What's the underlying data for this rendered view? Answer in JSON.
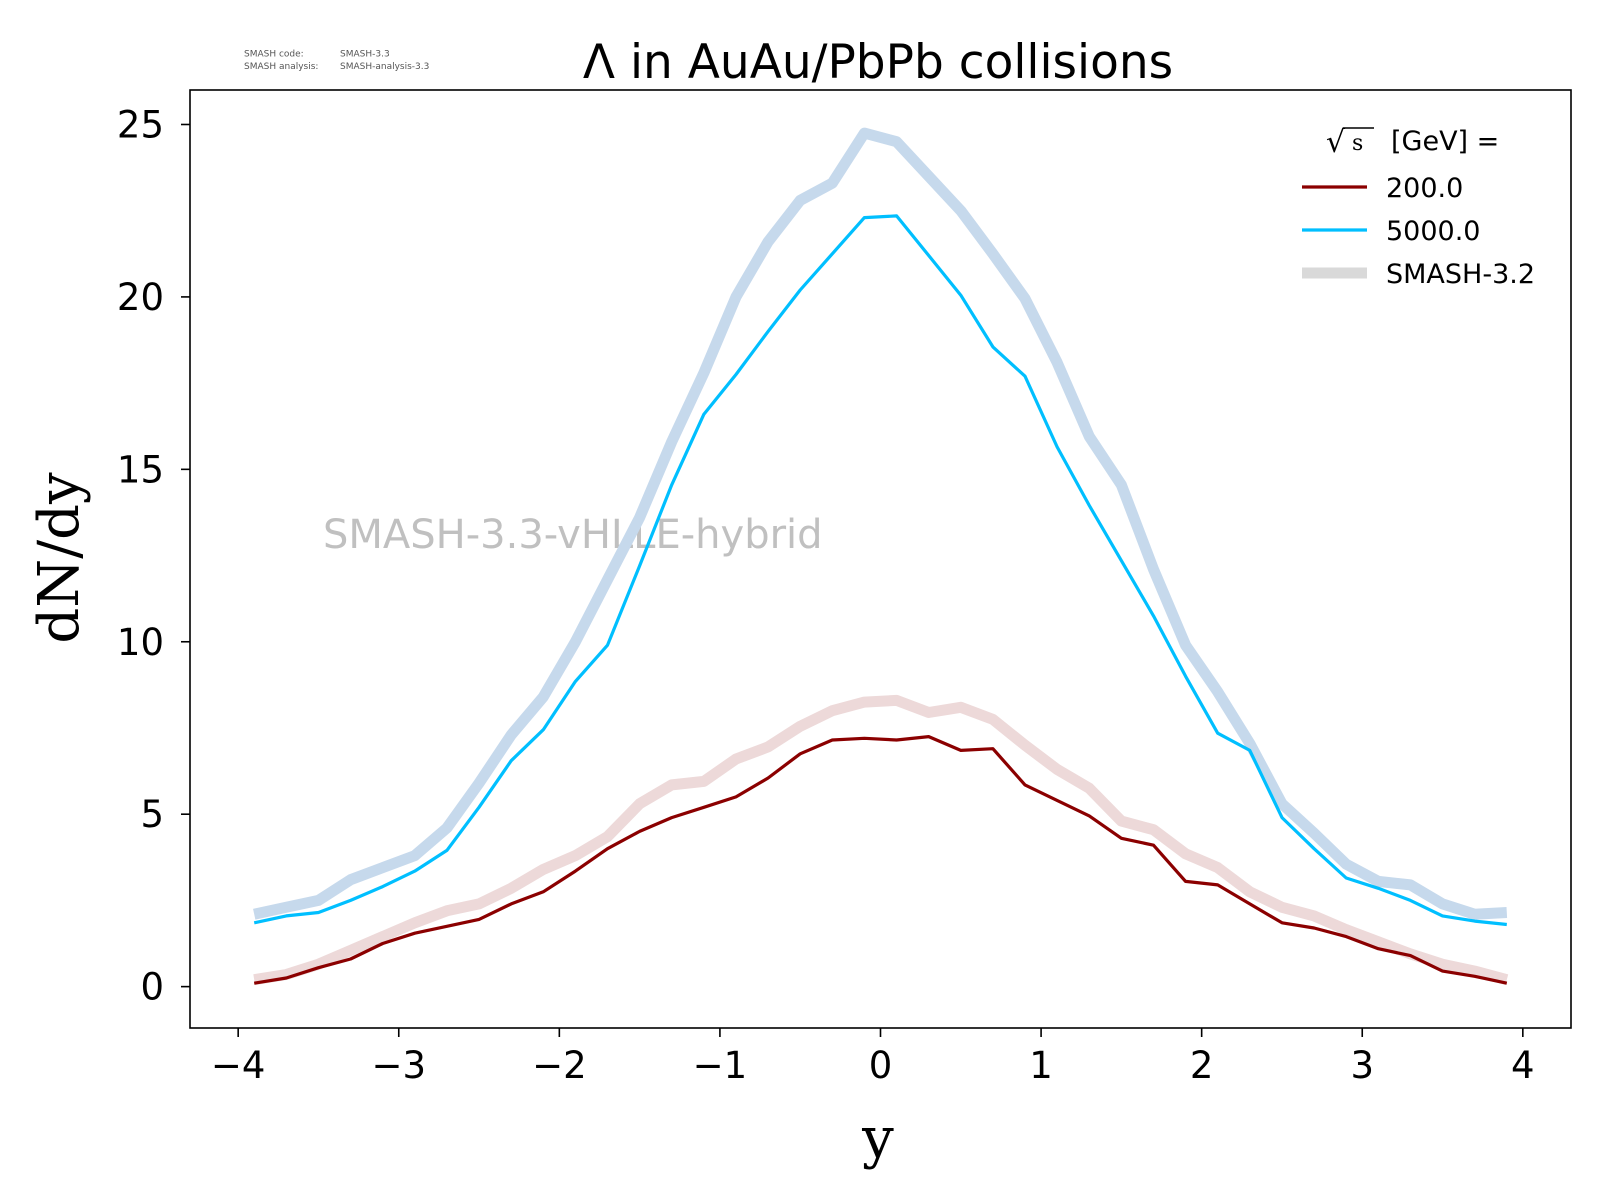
{
  "meta": {
    "code_label": "SMASH code:",
    "code_value": "SMASH-3.3",
    "analysis_label": "SMASH analysis:",
    "analysis_value": "SMASH-analysis-3.3"
  },
  "watermark": "SMASH-3.3-vHLLE-hybrid",
  "chart_data": {
    "type": "line",
    "title": "Λ in AuAu/PbPb collisions",
    "xlabel": "y",
    "ylabel": "dN/dy",
    "xlim": [
      -4.3,
      4.3
    ],
    "ylim": [
      -1.2,
      26.0
    ],
    "xticks": [
      -4,
      -3,
      -2,
      -1,
      0,
      1,
      2,
      3,
      4
    ],
    "xtick_labels": [
      "−4",
      "−3",
      "−2",
      "−1",
      "0",
      "1",
      "2",
      "3",
      "4"
    ],
    "yticks": [
      0,
      5,
      10,
      15,
      20,
      25
    ],
    "ytick_labels": [
      "0",
      "5",
      "10",
      "15",
      "20",
      "25"
    ],
    "grid": false,
    "legend": {
      "title": "√s [GeV] =",
      "title_sqrt": "√",
      "title_s": "s",
      "title_rest": "[GeV] =",
      "placement": "top-right"
    },
    "x": [
      -3.9,
      -3.7,
      -3.5,
      -3.3,
      -3.1,
      -2.9,
      -2.7,
      -2.5,
      -2.3,
      -2.1,
      -1.9,
      -1.7,
      -1.5,
      -1.3,
      -1.1,
      -0.9,
      -0.7,
      -0.5,
      -0.3,
      -0.1,
      0.1,
      0.3,
      0.5,
      0.7,
      0.9,
      1.1,
      1.3,
      1.5,
      1.7,
      1.9,
      2.1,
      2.3,
      2.5,
      2.7,
      2.9,
      3.1,
      3.3,
      3.5,
      3.7,
      3.9
    ],
    "series": [
      {
        "name": "SMASH-3.2",
        "color": "#c6d9ec",
        "values": [
          2.1,
          2.3,
          2.5,
          3.1,
          3.45,
          3.8,
          4.6,
          5.9,
          7.3,
          8.4,
          10.0,
          11.8,
          13.6,
          15.8,
          17.8,
          20.0,
          21.6,
          22.8,
          23.3,
          24.75,
          24.5,
          23.5,
          22.5,
          21.25,
          19.95,
          18.1,
          15.95,
          14.55,
          12.1,
          9.9,
          8.55,
          7.05,
          5.3,
          4.45,
          3.55,
          3.05,
          2.95,
          2.4,
          2.1,
          2.15
        ]
      },
      {
        "name": "SMASH-3.2",
        "color": "#edd9d9",
        "values": [
          0.2,
          0.35,
          0.65,
          1.05,
          1.45,
          1.85,
          2.2,
          2.4,
          2.85,
          3.4,
          3.8,
          4.35,
          5.3,
          5.85,
          5.95,
          6.6,
          6.95,
          7.55,
          8.0,
          8.25,
          8.3,
          7.95,
          8.1,
          7.75,
          7.0,
          6.3,
          5.75,
          4.8,
          4.55,
          3.85,
          3.45,
          2.75,
          2.3,
          2.05,
          1.65,
          1.3,
          0.95,
          0.65,
          0.45,
          0.2
        ]
      },
      {
        "name": "5000.0",
        "color": "#00bfff",
        "values": [
          1.85,
          2.05,
          2.15,
          2.5,
          2.9,
          3.35,
          3.95,
          5.2,
          6.55,
          7.45,
          8.85,
          9.9,
          12.2,
          14.55,
          16.6,
          17.75,
          19.0,
          20.2,
          21.25,
          22.3,
          22.35,
          21.2,
          20.05,
          18.55,
          17.7,
          15.65,
          13.95,
          12.35,
          10.75,
          9.0,
          7.35,
          6.85,
          4.9,
          4.0,
          3.15,
          2.85,
          2.5,
          2.05,
          1.9,
          1.8
        ]
      },
      {
        "name": "200.0",
        "color": "#8b0000",
        "values": [
          0.1,
          0.25,
          0.55,
          0.8,
          1.25,
          1.55,
          1.75,
          1.95,
          2.4,
          2.75,
          3.35,
          4.0,
          4.5,
          4.9,
          5.2,
          5.5,
          6.05,
          6.75,
          7.15,
          7.2,
          7.15,
          7.25,
          6.85,
          6.9,
          5.85,
          5.4,
          4.95,
          4.3,
          4.1,
          3.05,
          2.95,
          2.4,
          1.85,
          1.7,
          1.45,
          1.1,
          0.9,
          0.45,
          0.3,
          0.1
        ]
      }
    ],
    "legend_entries": [
      {
        "label": "200.0",
        "color": "#8b0000",
        "style": "thin"
      },
      {
        "label": "5000.0",
        "color": "#00bfff",
        "style": "thin"
      },
      {
        "label": "SMASH-3.2",
        "color": "#d9d9d9",
        "style": "thick"
      }
    ]
  }
}
